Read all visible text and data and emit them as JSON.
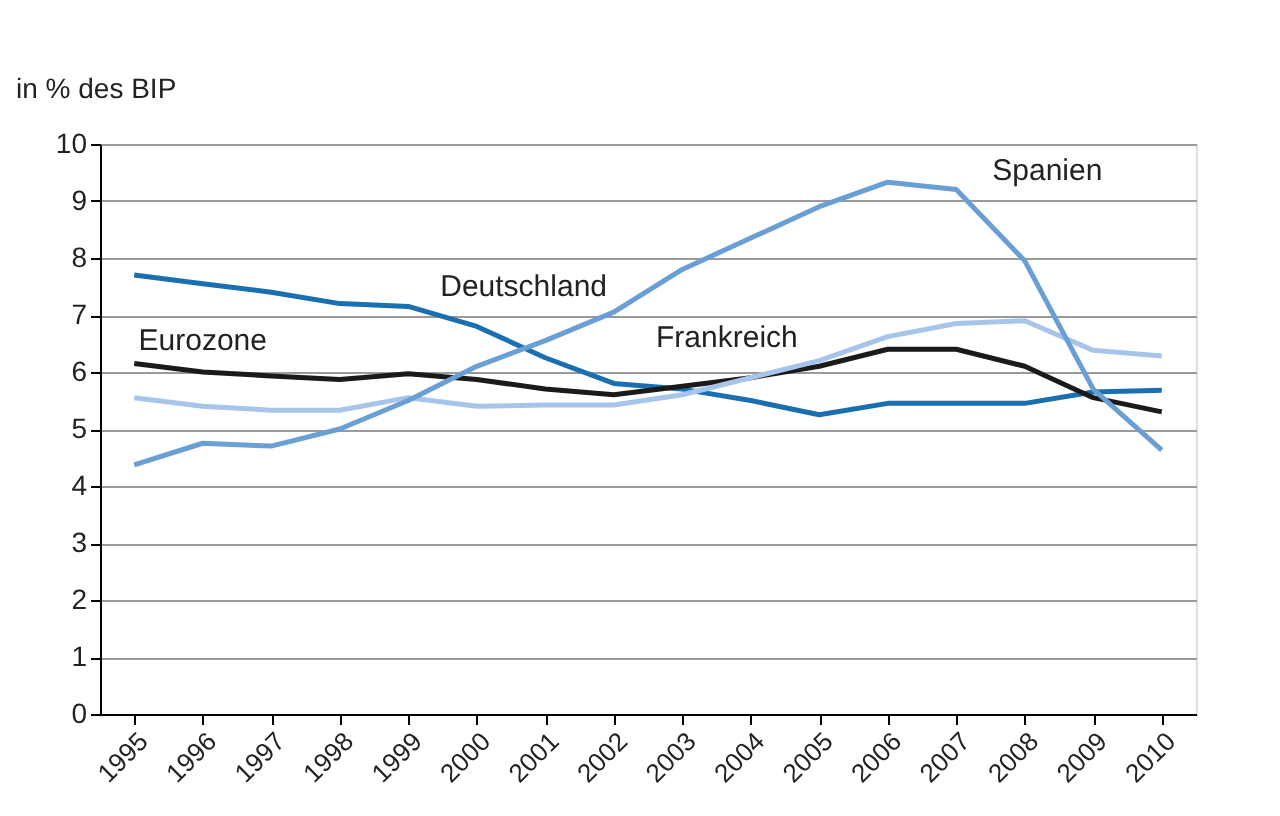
{
  "chart_data": {
    "type": "line",
    "ylabel": "in % des BIP",
    "categories": [
      "1995",
      "1996",
      "1997",
      "1998",
      "1999",
      "2000",
      "2001",
      "2002",
      "2003",
      "2004",
      "2005",
      "2006",
      "2007",
      "2008",
      "2009",
      "2010"
    ],
    "series": [
      {
        "name": "Deutschland",
        "color": "#1a6fb0",
        "values": [
          7.7,
          7.55,
          7.4,
          7.2,
          7.15,
          6.8,
          6.25,
          5.8,
          5.7,
          5.5,
          5.25,
          5.45,
          5.45,
          5.45,
          5.65,
          5.68
        ]
      },
      {
        "name": "Eurozone",
        "color": "#1a1a1a",
        "values": [
          6.15,
          6.0,
          5.93,
          5.87,
          5.97,
          5.87,
          5.7,
          5.6,
          5.75,
          5.9,
          6.1,
          6.4,
          6.4,
          6.1,
          5.55,
          5.3
        ]
      },
      {
        "name": "Frankreich",
        "color": "#a7c5ea",
        "values": [
          5.55,
          5.4,
          5.33,
          5.33,
          5.55,
          5.4,
          5.42,
          5.42,
          5.6,
          5.9,
          6.2,
          6.62,
          6.85,
          6.9,
          6.38,
          6.28
        ]
      },
      {
        "name": "Spanien",
        "color": "#6a9fd6",
        "values": [
          4.37,
          4.75,
          4.7,
          5.0,
          5.5,
          6.1,
          6.55,
          7.05,
          7.8,
          8.35,
          8.9,
          9.33,
          9.2,
          7.95,
          5.7,
          4.63
        ]
      }
    ],
    "ylim": [
      0,
      10
    ],
    "yticks": [
      0,
      1,
      2,
      3,
      4,
      5,
      6,
      7,
      8,
      9,
      10
    ],
    "grid": "y",
    "legend": false,
    "marker": "none",
    "line_style": "solid"
  }
}
